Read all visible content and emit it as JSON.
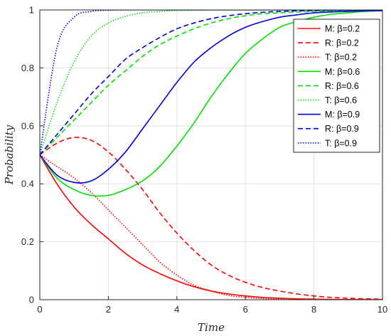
{
  "chart_data": {
    "type": "line",
    "title": "",
    "xlabel": "Time",
    "ylabel": "Probability",
    "xlim": [
      0,
      10
    ],
    "ylim": [
      0,
      1
    ],
    "xticks": [
      "0",
      "2",
      "4",
      "6",
      "8",
      "10"
    ],
    "yticks": [
      "0",
      "0.2",
      "0.4",
      "0.6",
      "0.8",
      "1"
    ],
    "grid": true,
    "legend_position": "top-right",
    "x": [
      0,
      0.5,
      1,
      1.5,
      2,
      2.5,
      3,
      3.5,
      4,
      4.5,
      5,
      5.5,
      6,
      6.5,
      7,
      7.5,
      8,
      8.5,
      9,
      9.5,
      10
    ],
    "series": [
      {
        "name": "M: β=0.2",
        "color": "#ff0000",
        "dash": "solid",
        "values": [
          0.5,
          0.4,
          0.32,
          0.26,
          0.21,
          0.16,
          0.12,
          0.09,
          0.065,
          0.045,
          0.03,
          0.02,
          0.013,
          0.008,
          0.005,
          0.003,
          0.002,
          0.001,
          0.0005,
          0.0002,
          0.0001
        ]
      },
      {
        "name": "R: β=0.2",
        "color": "#ff0000",
        "dash": "dashed",
        "values": [
          0.5,
          0.54,
          0.56,
          0.55,
          0.51,
          0.45,
          0.38,
          0.3,
          0.23,
          0.17,
          0.12,
          0.085,
          0.06,
          0.042,
          0.03,
          0.02,
          0.013,
          0.008,
          0.005,
          0.003,
          0.002
        ]
      },
      {
        "name": "T: β=0.2",
        "color": "#ff0000",
        "dash": "dotted",
        "values": [
          0.5,
          0.46,
          0.42,
          0.37,
          0.31,
          0.25,
          0.19,
          0.13,
          0.085,
          0.05,
          0.03,
          0.015,
          0.008,
          0.004,
          0.002,
          0.001,
          0.0005,
          0.0002,
          0.0001,
          0.0,
          0.0
        ]
      },
      {
        "name": "M: β=0.6",
        "color": "#00e000",
        "dash": "solid",
        "values": [
          0.5,
          0.42,
          0.38,
          0.36,
          0.36,
          0.38,
          0.41,
          0.46,
          0.53,
          0.61,
          0.7,
          0.78,
          0.85,
          0.9,
          0.94,
          0.96,
          0.975,
          0.985,
          0.99,
          0.995,
          0.997
        ]
      },
      {
        "name": "R: β=0.6",
        "color": "#00e000",
        "dash": "dashed",
        "values": [
          0.5,
          0.56,
          0.62,
          0.68,
          0.74,
          0.79,
          0.84,
          0.88,
          0.91,
          0.935,
          0.955,
          0.97,
          0.98,
          0.987,
          0.99,
          0.993,
          0.995,
          0.997,
          0.998,
          0.999,
          0.9995
        ]
      },
      {
        "name": "T: β=0.6",
        "color": "#00e000",
        "dash": "dotted",
        "values": [
          0.5,
          0.68,
          0.82,
          0.91,
          0.955,
          0.978,
          0.99,
          0.995,
          0.998,
          0.999,
          1,
          1,
          1,
          1,
          1,
          1,
          1,
          1,
          1,
          1,
          1
        ]
      },
      {
        "name": "M: β=0.9",
        "color": "#0000dd",
        "dash": "solid",
        "values": [
          0.5,
          0.43,
          0.405,
          0.41,
          0.45,
          0.51,
          0.59,
          0.67,
          0.75,
          0.82,
          0.87,
          0.91,
          0.94,
          0.96,
          0.975,
          0.983,
          0.99,
          0.993,
          0.995,
          0.997,
          0.998
        ]
      },
      {
        "name": "R: β=0.9",
        "color": "#0000dd",
        "dash": "dashed",
        "values": [
          0.5,
          0.57,
          0.64,
          0.71,
          0.77,
          0.83,
          0.87,
          0.905,
          0.935,
          0.955,
          0.97,
          0.98,
          0.987,
          0.992,
          0.995,
          0.997,
          0.998,
          0.999,
          0.9995,
          1,
          1
        ]
      },
      {
        "name": "T: β=0.9",
        "color": "#0000dd",
        "dash": "dotted",
        "values": [
          0.5,
          0.87,
          0.975,
          0.995,
          0.999,
          1,
          1,
          1,
          1,
          1,
          1,
          1,
          1,
          1,
          1,
          1,
          1,
          1,
          1,
          1,
          1
        ]
      }
    ]
  }
}
